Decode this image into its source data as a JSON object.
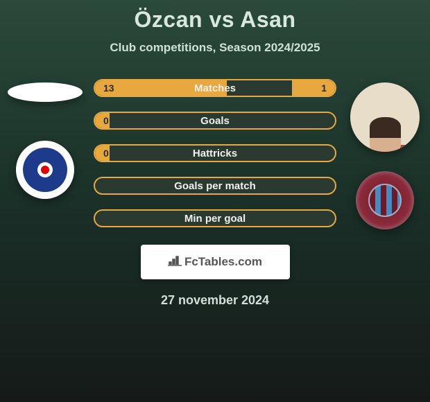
{
  "title": "Özcan vs Asan",
  "subtitle": "Club competitions, Season 2024/2025",
  "date": "27 november 2024",
  "watermark": "FcTables.com",
  "player_left": {
    "name": "Özcan",
    "club": "Kasımpaşa",
    "club_colors": {
      "primary": "#1e3a8a",
      "secondary": "#ffffff"
    }
  },
  "player_right": {
    "name": "Asan",
    "club": "Trabzonspor",
    "club_colors": {
      "primary": "#6b1a2a",
      "secondary": "#4a8ac0"
    }
  },
  "bar_style": {
    "border_color": "#e8a840",
    "fill_color": "#e8a840",
    "track_color": "#2a3a30",
    "label_color": "#f0f0f0",
    "value_color": "#2a2a2a"
  },
  "stats": [
    {
      "label": "Matches",
      "left_value": "13",
      "right_value": "1",
      "left_fill_pct": 55,
      "right_fill_pct": 18
    },
    {
      "label": "Goals",
      "left_value": "0",
      "right_value": "",
      "left_fill_pct": 6,
      "right_fill_pct": 0
    },
    {
      "label": "Hattricks",
      "left_value": "0",
      "right_value": "",
      "left_fill_pct": 6,
      "right_fill_pct": 0
    },
    {
      "label": "Goals per match",
      "left_value": "",
      "right_value": "",
      "left_fill_pct": 0,
      "right_fill_pct": 0
    },
    {
      "label": "Min per goal",
      "left_value": "",
      "right_value": "",
      "left_fill_pct": 0,
      "right_fill_pct": 0
    }
  ]
}
